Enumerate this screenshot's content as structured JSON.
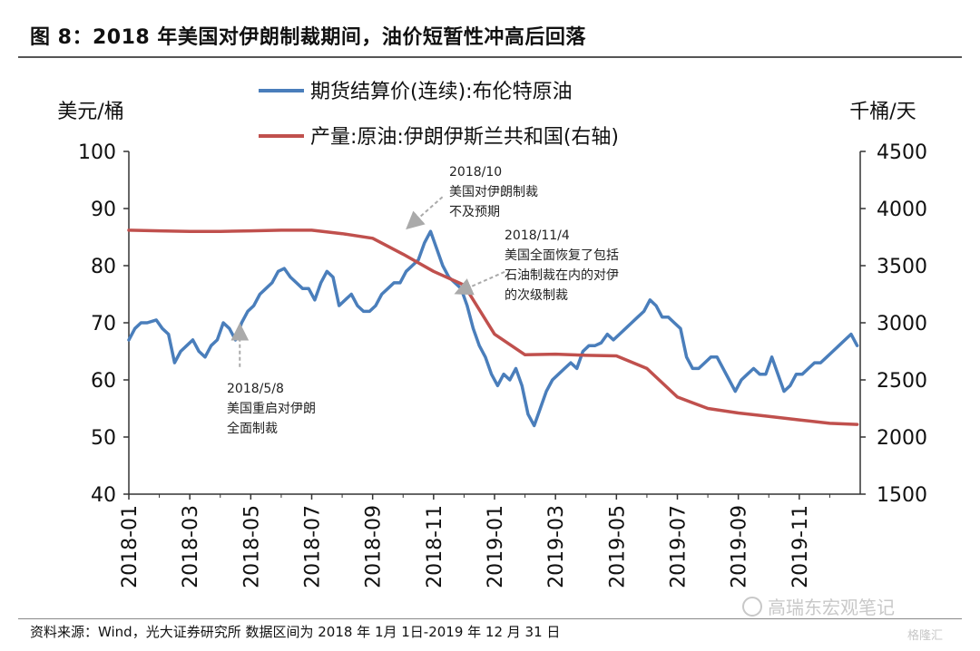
{
  "header": {
    "title": "图 8：2018 年美国对伊朗制裁期间，油价短暂性冲高后回落"
  },
  "footer": {
    "source": "资料来源：Wind，光大证券研究所 数据区间为 2018 年 1月 1日-2019 年 12 月 31 日",
    "watermark": "高瑞东宏观笔记",
    "watermark2": "格隆汇"
  },
  "colors": {
    "oil": "#4a7ebb",
    "production": "#c0504d",
    "annotation_arrow": "#aaaaaa"
  },
  "chart_data": {
    "type": "line",
    "title": "图 8：2018 年美国对伊朗制裁期间，油价短暂性冲高后回落",
    "left_unit": "美元/桶",
    "right_unit": "千桶/天",
    "left_ylim": [
      40,
      100
    ],
    "right_ylim": [
      1500,
      4500
    ],
    "left_ticks": [
      "100",
      "90",
      "80",
      "70",
      "60",
      "50",
      "40"
    ],
    "right_ticks": [
      "4500",
      "4000",
      "3500",
      "3000",
      "2500",
      "2000",
      "1500"
    ],
    "x_ticks": [
      "2018-01",
      "2018-03",
      "2018-05",
      "2018-07",
      "2018-09",
      "2018-11",
      "2019-01",
      "2019-03",
      "2019-05",
      "2019-07",
      "2019-09",
      "2019-11"
    ],
    "legend_position": "top-center",
    "series": [
      {
        "name": "期货结算价(连续):布伦特原油",
        "axis": "left",
        "x": [
          0,
          0.2,
          0.4,
          0.6,
          0.9,
          1.1,
          1.3,
          1.5,
          1.7,
          1.9,
          2.1,
          2.3,
          2.5,
          2.7,
          2.9,
          3.1,
          3.3,
          3.5,
          3.7,
          3.9,
          4.1,
          4.3,
          4.5,
          4.7,
          4.9,
          5.1,
          5.3,
          5.5,
          5.7,
          5.9,
          6.1,
          6.3,
          6.5,
          6.7,
          6.9,
          7.1,
          7.3,
          7.5,
          7.7,
          7.9,
          8.1,
          8.3,
          8.5,
          8.7,
          8.9,
          9.1,
          9.3,
          9.5,
          9.7,
          9.9,
          10.1,
          10.3,
          10.5,
          10.7,
          10.9,
          11.1,
          11.3,
          11.5,
          11.7,
          11.9,
          12.1,
          12.3,
          12.5,
          12.7,
          12.9,
          13.1,
          13.3,
          13.5,
          13.7,
          13.9,
          14.1,
          14.3,
          14.5,
          14.7,
          14.9,
          15.1,
          15.3,
          15.5,
          15.7,
          15.9,
          16.1,
          16.3,
          16.5,
          16.7,
          16.9,
          17.1,
          17.3,
          17.5,
          17.7,
          17.9,
          18.1,
          18.3,
          18.5,
          18.7,
          18.9,
          19.1,
          19.3,
          19.5,
          19.7,
          19.9,
          20.1,
          20.3,
          20.5,
          20.7,
          20.9,
          21.1,
          21.3,
          21.5,
          21.7,
          21.9,
          22.1,
          22.3,
          22.5,
          22.7,
          22.9,
          23.1,
          23.3,
          23.5,
          23.7,
          23.9
        ],
        "values": [
          67,
          69,
          70,
          70,
          70.5,
          69,
          68,
          63,
          65,
          66,
          67,
          65,
          64,
          66,
          67,
          70,
          69,
          67,
          70,
          72,
          73,
          75,
          76,
          77,
          79,
          79.5,
          78,
          77,
          76,
          76,
          74,
          77,
          79,
          78,
          73,
          74,
          75,
          73,
          72,
          72,
          73,
          75,
          76,
          77,
          77,
          79,
          80,
          81,
          84,
          86,
          83,
          80,
          78,
          77,
          76,
          73,
          69,
          66,
          64,
          61,
          59,
          61,
          60,
          62,
          59,
          54,
          52,
          55,
          58,
          60,
          61,
          62,
          63,
          62,
          65,
          66,
          66,
          66.5,
          68,
          67,
          68,
          69,
          70,
          71,
          72,
          74,
          73,
          71,
          71,
          70,
          69,
          64,
          62,
          62,
          63,
          64,
          64,
          62,
          60,
          58,
          60,
          61,
          62,
          61,
          61,
          64,
          61,
          58,
          59,
          61,
          61,
          62,
          63,
          63,
          64,
          65,
          66,
          67,
          68,
          66
        ]
      },
      {
        "name": "产量:原油:伊朗伊斯兰共和国(右轴)",
        "axis": "right",
        "x": [
          0,
          1,
          2,
          3,
          4,
          5,
          6,
          7,
          8,
          9,
          10,
          11,
          12,
          13,
          14,
          15,
          16,
          17,
          18,
          19,
          20,
          21,
          22,
          23,
          23.9
        ],
        "values": [
          3810,
          3805,
          3800,
          3800,
          3805,
          3810,
          3810,
          3780,
          3740,
          3600,
          3450,
          3330,
          2900,
          2720,
          2725,
          2715,
          2710,
          2600,
          2350,
          2250,
          2210,
          2180,
          2150,
          2120,
          2110
        ]
      }
    ],
    "annotations": [
      {
        "lines": [
          "2018/5/8",
          "美国重启对伊朗",
          "全面制裁"
        ],
        "x": 3.7,
        "y": 71
      },
      {
        "lines": [
          "2018/10",
          "美国对伊朗制裁",
          "不及预期"
        ],
        "x": 9.1,
        "y": 86
      },
      {
        "lines": [
          "2018/11/4",
          "美国全面恢复了包括",
          "石油制裁在内的对伊",
          "的次级制裁"
        ],
        "x": 10.6,
        "y": 77
      }
    ]
  }
}
